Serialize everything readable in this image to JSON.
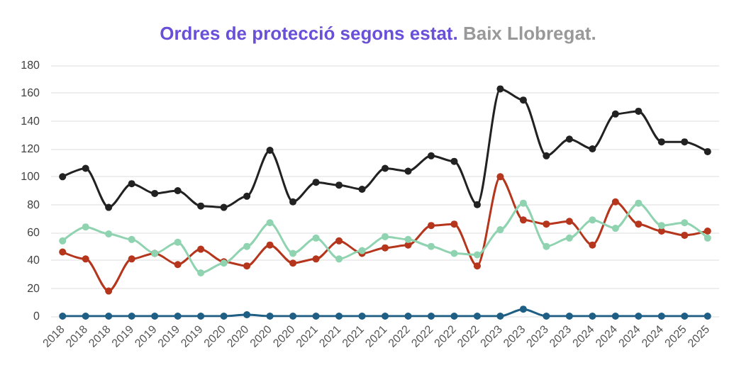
{
  "chart_data": {
    "type": "line",
    "title": "Ordres de protecció segons estat.",
    "subtitle": "Baix Llobregat.",
    "categories": [
      "2018",
      "2018",
      "2018",
      "2019",
      "2019",
      "2019",
      "2019",
      "2020",
      "2020",
      "2020",
      "2020",
      "2021",
      "2021",
      "2021",
      "2021",
      "2022",
      "2022",
      "2022",
      "2022",
      "2023",
      "2023",
      "2023",
      "2023",
      "2024",
      "2024",
      "2024",
      "2024",
      "2025",
      "2025"
    ],
    "series": [
      {
        "color": "#222222",
        "values": [
          100,
          106,
          78,
          95,
          88,
          90,
          79,
          78,
          86,
          119,
          82,
          96,
          94,
          91,
          106,
          104,
          115,
          111,
          80,
          163,
          155,
          115,
          127,
          120,
          145,
          147,
          125,
          125,
          118
        ]
      },
      {
        "color": "#b5361c",
        "values": [
          46,
          41,
          18,
          41,
          45,
          37,
          48,
          39,
          36,
          51,
          38,
          41,
          54,
          45,
          49,
          51,
          65,
          66,
          36,
          100,
          69,
          66,
          68,
          51,
          82,
          66,
          61,
          58,
          61
        ]
      },
      {
        "color": "#8fd3b0",
        "values": [
          54,
          64,
          59,
          55,
          45,
          53,
          31,
          38,
          50,
          67,
          45,
          56,
          41,
          47,
          57,
          55,
          50,
          45,
          44,
          62,
          81,
          50,
          56,
          69,
          63,
          81,
          65,
          67,
          56
        ]
      },
      {
        "color": "#1f5f85",
        "values": [
          0,
          0,
          0,
          0,
          0,
          0,
          0,
          0,
          1,
          0,
          0,
          0,
          0,
          0,
          0,
          0,
          0,
          0,
          0,
          0,
          5,
          0,
          0,
          0,
          0,
          0,
          0,
          0,
          0
        ]
      }
    ],
    "ylim": [
      0,
      180
    ],
    "yticks": [
      0,
      20,
      40,
      60,
      80,
      100,
      120,
      140,
      160,
      180
    ],
    "grid": "y",
    "marker": "circle",
    "line_style": "solid"
  }
}
